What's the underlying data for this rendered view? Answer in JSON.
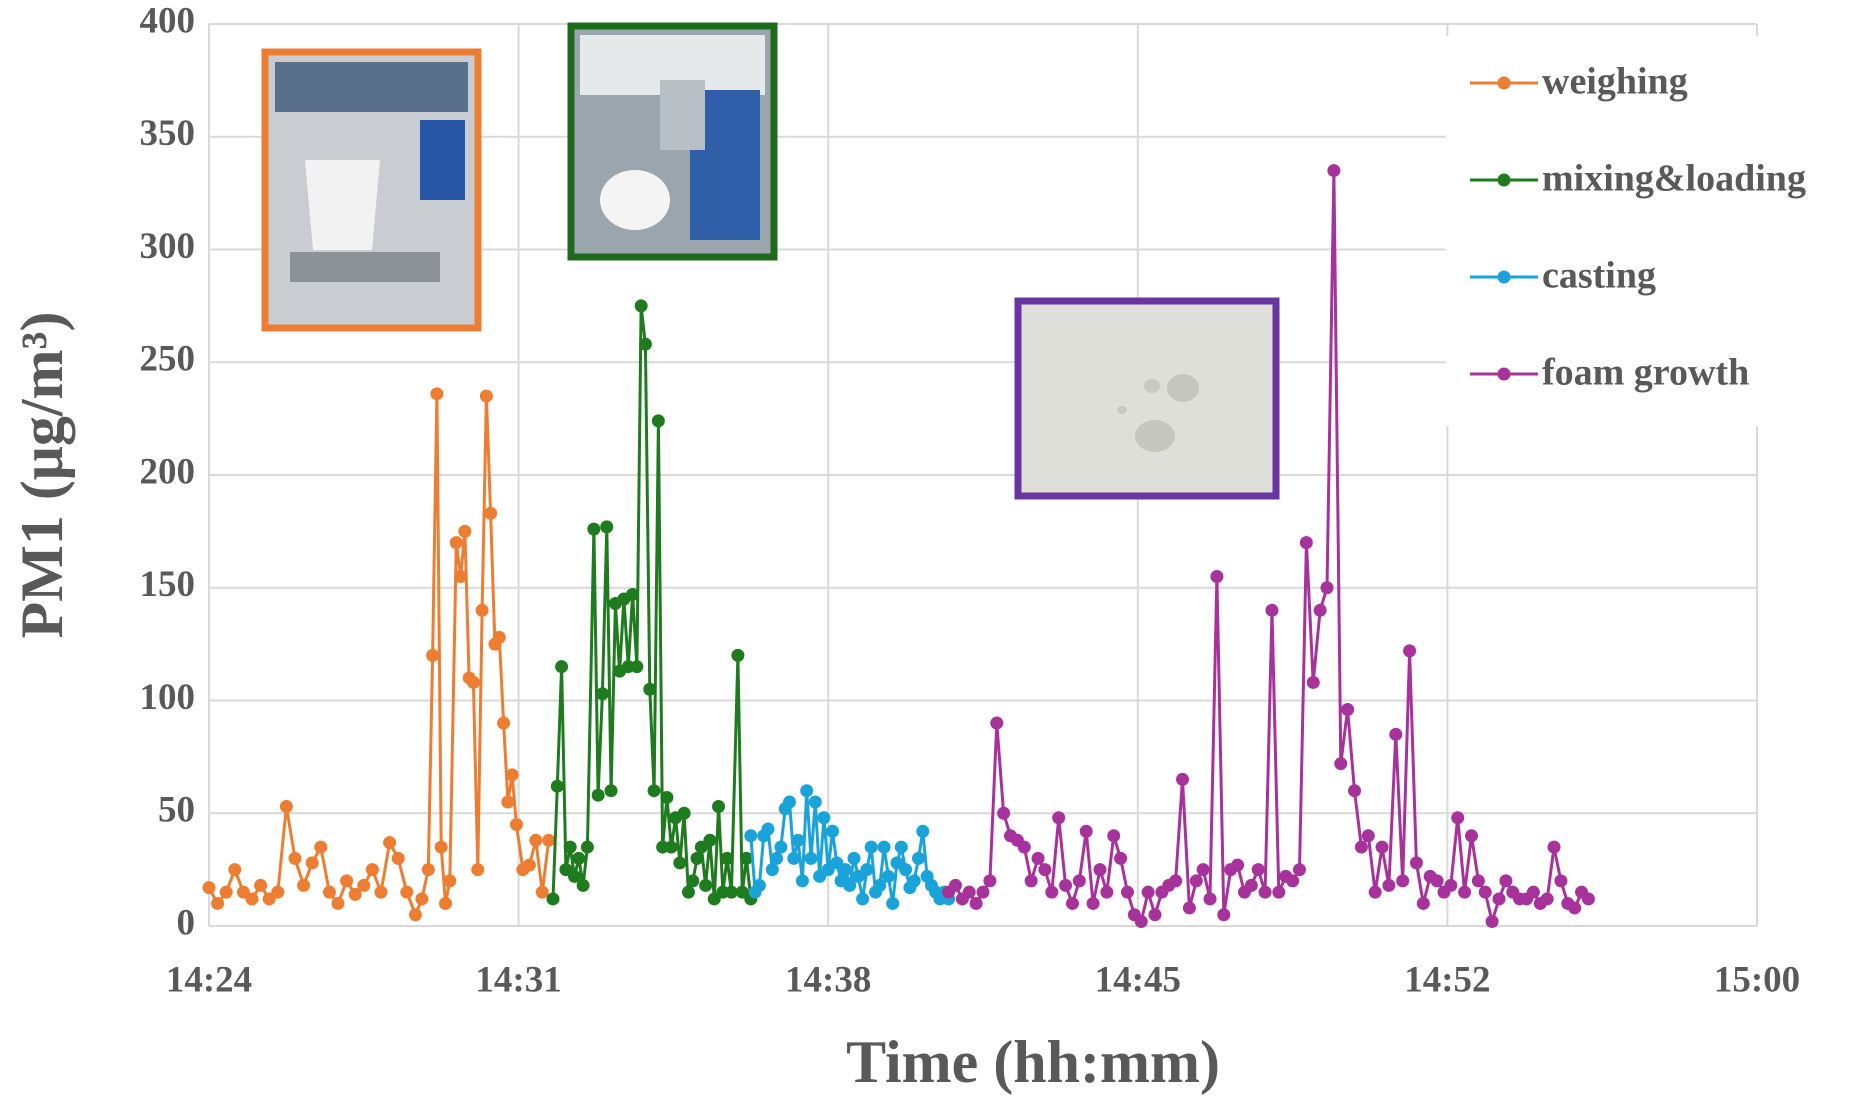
{
  "chart_data": {
    "type": "line",
    "x_label": "Time (hh:mm)",
    "y_label": "PM1 (μg/m³)",
    "xlim": [
      864,
      900
    ],
    "xticks": [
      {
        "value": 864,
        "label": "14:24"
      },
      {
        "value": 871.2,
        "label": "14:31"
      },
      {
        "value": 878.4,
        "label": "14:38"
      },
      {
        "value": 885.6,
        "label": "14:45"
      },
      {
        "value": 892.8,
        "label": "14:52"
      },
      {
        "value": 900,
        "label": "15:00"
      }
    ],
    "ylim": [
      0,
      400
    ],
    "yticks": [
      0,
      50,
      100,
      150,
      200,
      250,
      300,
      350,
      400
    ],
    "grid": true,
    "legend_position": "upper right",
    "series": [
      {
        "name": "weighing",
        "color": "#ed7d31",
        "x": [
          864.0,
          864.2,
          864.4,
          864.6,
          864.8,
          865.0,
          865.2,
          865.4,
          865.6,
          865.8,
          866.0,
          866.2,
          866.4,
          866.6,
          866.8,
          867.0,
          867.2,
          867.4,
          867.6,
          867.8,
          868.0,
          868.2,
          868.4,
          868.6,
          868.8,
          868.95,
          869.1,
          869.2,
          869.3,
          869.4,
          869.5,
          869.6,
          869.75,
          869.85,
          869.95,
          870.05,
          870.15,
          870.25,
          870.35,
          870.45,
          870.55,
          870.65,
          870.75,
          870.85,
          870.95,
          871.05,
          871.15,
          871.3,
          871.45,
          871.6,
          871.75,
          871.9
        ],
        "values": [
          17,
          10,
          15,
          25,
          15,
          12,
          18,
          12,
          15,
          53,
          30,
          18,
          28,
          35,
          15,
          10,
          20,
          14,
          18,
          25,
          15,
          37,
          30,
          15,
          5,
          12,
          25,
          120,
          236,
          35,
          10,
          20,
          170,
          155,
          175,
          110,
          108,
          25,
          140,
          235,
          183,
          125,
          128,
          90,
          55,
          67,
          45,
          25,
          27,
          38,
          15,
          38
        ]
      },
      {
        "name": "mixing&loading",
        "color": "#1e7b1e",
        "x": [
          872.0,
          872.1,
          872.2,
          872.3,
          872.4,
          872.5,
          872.6,
          872.7,
          872.8,
          872.95,
          873.05,
          873.15,
          873.25,
          873.35,
          873.45,
          873.55,
          873.65,
          873.75,
          873.85,
          873.95,
          874.05,
          874.15,
          874.25,
          874.35,
          874.45,
          874.55,
          874.65,
          874.75,
          874.85,
          874.95,
          875.05,
          875.15,
          875.25,
          875.35,
          875.45,
          875.55,
          875.65,
          875.75,
          875.85,
          875.95,
          876.05,
          876.15,
          876.3,
          876.4,
          876.5,
          876.6
        ],
        "values": [
          12,
          62,
          115,
          25,
          35,
          22,
          30,
          18,
          35,
          176,
          58,
          103,
          177,
          60,
          143,
          113,
          145,
          115,
          147,
          115,
          275,
          258,
          105,
          60,
          224,
          35,
          57,
          35,
          48,
          28,
          50,
          15,
          20,
          30,
          35,
          18,
          38,
          12,
          53,
          15,
          30,
          15,
          120,
          15,
          30,
          12
        ]
      },
      {
        "name": "casting",
        "color": "#1aa3d9",
        "x": [
          876.6,
          876.7,
          876.8,
          876.9,
          877.0,
          877.1,
          877.2,
          877.3,
          877.4,
          877.5,
          877.6,
          877.7,
          877.8,
          877.9,
          878.0,
          878.1,
          878.2,
          878.3,
          878.4,
          878.5,
          878.6,
          878.7,
          878.8,
          878.9,
          879.0,
          879.1,
          879.2,
          879.3,
          879.4,
          879.5,
          879.6,
          879.7,
          879.8,
          879.9,
          880.0,
          880.1,
          880.2,
          880.3,
          880.4,
          880.5,
          880.6,
          880.7,
          880.8,
          880.9,
          881.0,
          881.1,
          881.2
        ],
        "values": [
          40,
          15,
          18,
          40,
          43,
          25,
          30,
          35,
          52,
          55,
          30,
          38,
          20,
          60,
          30,
          55,
          22,
          48,
          25,
          42,
          28,
          20,
          25,
          18,
          30,
          22,
          12,
          25,
          35,
          15,
          18,
          35,
          22,
          10,
          28,
          35,
          25,
          17,
          20,
          30,
          42,
          22,
          18,
          15,
          12,
          15,
          12
        ]
      },
      {
        "name": "foam growth",
        "color": "#a8329b",
        "x": [
          881.2,
          881.36,
          881.52,
          881.68,
          881.84,
          882.0,
          882.16,
          882.32,
          882.48,
          882.64,
          882.8,
          882.96,
          883.12,
          883.28,
          883.44,
          883.6,
          883.76,
          883.92,
          884.08,
          884.24,
          884.4,
          884.56,
          884.72,
          884.88,
          885.04,
          885.2,
          885.36,
          885.52,
          885.68,
          885.84,
          886.0,
          886.16,
          886.32,
          886.48,
          886.64,
          886.8,
          886.96,
          887.12,
          887.28,
          887.44,
          887.6,
          887.76,
          887.92,
          888.08,
          888.24,
          888.4,
          888.56,
          888.72,
          888.88,
          889.04,
          889.2,
          889.36,
          889.52,
          889.68,
          889.84,
          890.0,
          890.16,
          890.32,
          890.48,
          890.64,
          890.8,
          890.96,
          891.12,
          891.28,
          891.44,
          891.6,
          891.76,
          891.92,
          892.08,
          892.24,
          892.4,
          892.56,
          892.72,
          892.88,
          893.04,
          893.2,
          893.36,
          893.52,
          893.68,
          893.84,
          894.0,
          894.16,
          894.32,
          894.48,
          894.64,
          894.8,
          894.96,
          895.12,
          895.28,
          895.44,
          895.6,
          895.76,
          895.92,
          896.08
        ],
        "values": [
          15,
          18,
          12,
          15,
          10,
          15,
          20,
          90,
          50,
          40,
          38,
          35,
          20,
          30,
          25,
          15,
          48,
          18,
          10,
          20,
          42,
          10,
          25,
          15,
          40,
          30,
          15,
          5,
          2,
          15,
          5,
          15,
          18,
          20,
          65,
          8,
          20,
          25,
          12,
          155,
          5,
          25,
          27,
          15,
          18,
          25,
          15,
          140,
          15,
          22,
          20,
          25,
          170,
          108,
          140,
          150,
          335,
          72,
          96,
          60,
          35,
          40,
          15,
          35,
          18,
          85,
          20,
          122,
          28,
          10,
          22,
          20,
          15,
          18,
          48,
          15,
          40,
          20,
          15,
          2,
          12,
          20,
          15,
          12,
          12,
          15,
          10,
          12,
          35,
          20,
          10,
          8,
          15,
          12
        ]
      }
    ]
  }
}
